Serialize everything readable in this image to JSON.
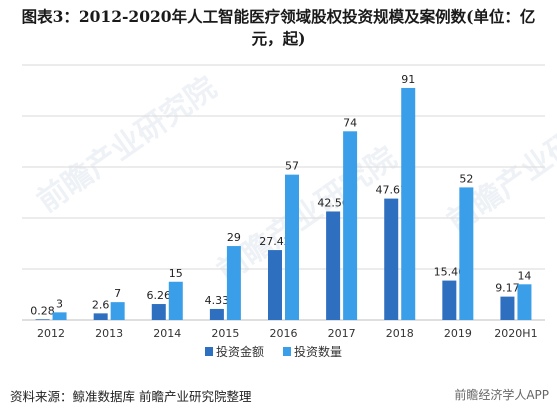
{
  "title": "图表3：2012-2020年人工智能医疗领域股权投资规模及案例数(单位：亿元，起)",
  "colors": {
    "series1": "#2e6fbf",
    "series2": "#3a9fe8",
    "grid": "#d9d9d9",
    "axis": "#bfbfbf"
  },
  "chart_data": {
    "type": "bar",
    "categories": [
      "2012",
      "2013",
      "2014",
      "2015",
      "2016",
      "2017",
      "2018",
      "2019",
      "2020H1"
    ],
    "series": [
      {
        "name": "投资金额",
        "values": [
          0.28,
          2.6,
          6.26,
          4.33,
          27.42,
          42.56,
          47.61,
          15.46,
          9.17
        ]
      },
      {
        "name": "投资数量",
        "values": [
          3,
          7,
          15,
          29,
          57,
          74,
          91,
          52,
          14
        ]
      }
    ],
    "ylim": [
      0,
      100
    ],
    "grid": true,
    "legend": "bottom-center"
  },
  "footer": {
    "source": "资料来源：鲸准数据库 前瞻产业研究院整理"
  },
  "brand": {
    "text": "前瞻经济学人APP"
  },
  "watermark": {
    "text": "前瞻产业研究院"
  }
}
